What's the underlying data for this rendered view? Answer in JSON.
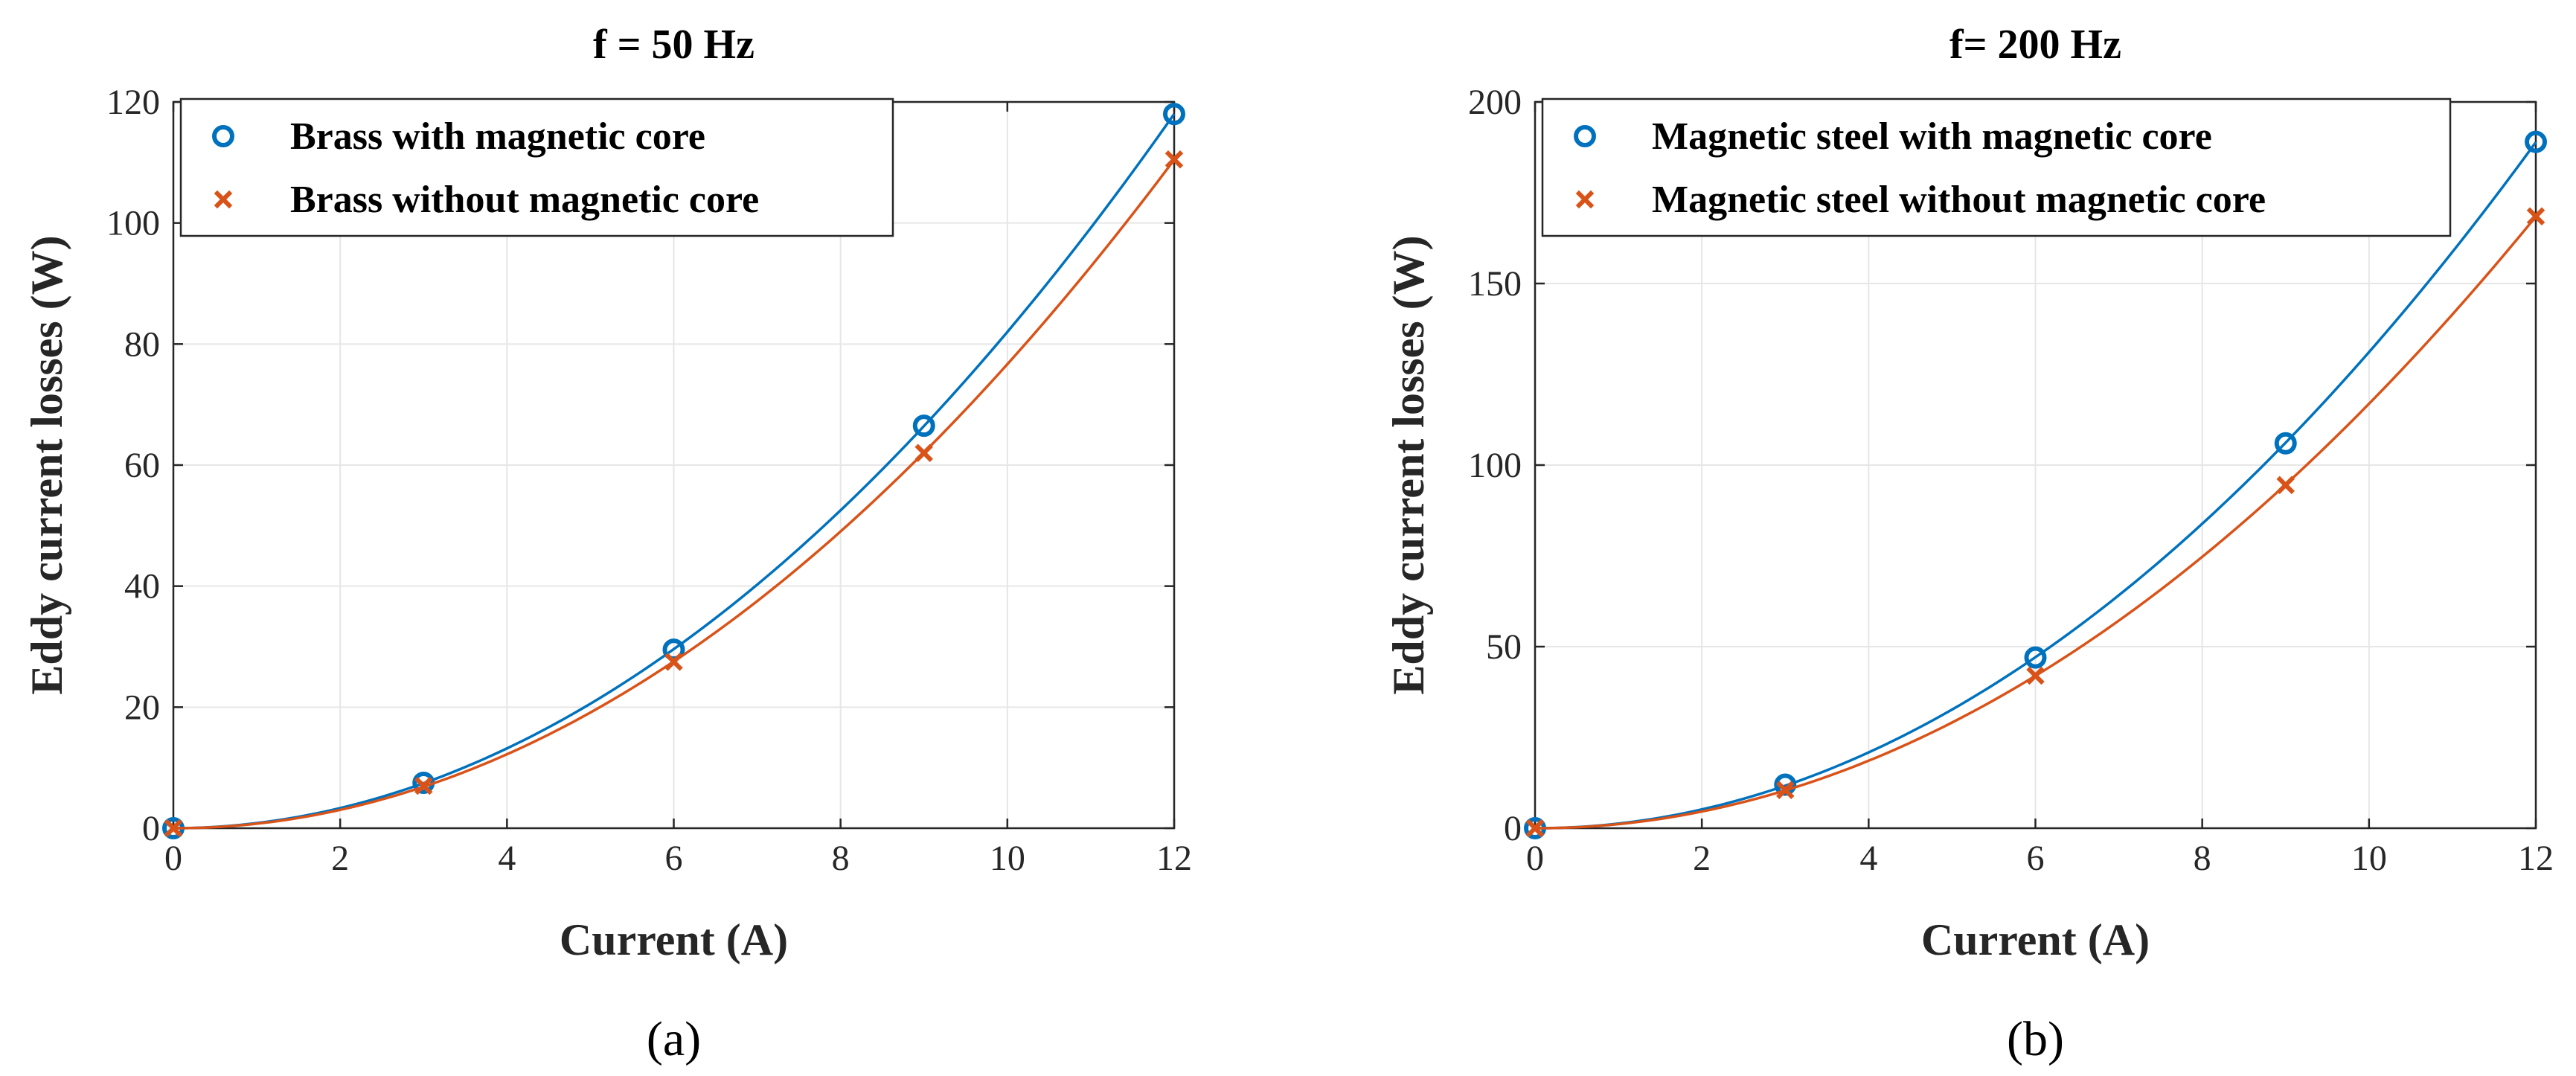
{
  "chart_data": [
    {
      "type": "line",
      "title": "f = 50 Hz",
      "xlabel": "Current (A)",
      "ylabel": "Eddy current losses (W)",
      "caption": "(a)",
      "xlim": [
        0,
        12
      ],
      "ylim": [
        0,
        120
      ],
      "xticks": [
        0,
        2,
        4,
        6,
        8,
        10,
        12
      ],
      "yticks": [
        0,
        20,
        40,
        60,
        80,
        100,
        120
      ],
      "xtick_labels": [
        "0",
        "2",
        "4",
        "6",
        "8",
        "10",
        "12"
      ],
      "ytick_labels": [
        "0",
        "20",
        "40",
        "60",
        "80",
        "100",
        "120"
      ],
      "grid": true,
      "legend_position": "top-left",
      "series": [
        {
          "name": "Brass with magnetic core",
          "marker": "circle",
          "color": "#0072BD",
          "x": [
            0,
            3,
            6,
            9,
            12
          ],
          "y": [
            0,
            7.5,
            29.5,
            66.5,
            118
          ]
        },
        {
          "name": "Brass without magnetic core",
          "marker": "x",
          "color": "#D95319",
          "x": [
            0,
            3,
            6,
            9,
            12
          ],
          "y": [
            0,
            7,
            27.5,
            62,
            110.5
          ]
        }
      ]
    },
    {
      "type": "line",
      "title": "f= 200 Hz",
      "xlabel": "Current (A)",
      "ylabel": "Eddy current losses (W)",
      "caption": "(b)",
      "xlim": [
        0,
        12
      ],
      "ylim": [
        0,
        200
      ],
      "xticks": [
        0,
        2,
        4,
        6,
        8,
        10,
        12
      ],
      "yticks": [
        0,
        50,
        100,
        150,
        200
      ],
      "xtick_labels": [
        "0",
        "2",
        "4",
        "6",
        "8",
        "10",
        "12"
      ],
      "ytick_labels": [
        "0",
        "50",
        "100",
        "150",
        "200"
      ],
      "grid": true,
      "legend_position": "top-left",
      "series": [
        {
          "name": "Magnetic steel with magnetic core",
          "marker": "circle",
          "color": "#0072BD",
          "x": [
            0,
            3,
            6,
            9,
            12
          ],
          "y": [
            0,
            12,
            47,
            106,
            189
          ]
        },
        {
          "name": "Magnetic steel without magnetic core",
          "marker": "x",
          "color": "#D95319",
          "x": [
            0,
            3,
            6,
            9,
            12
          ],
          "y": [
            0,
            10.5,
            42,
            94.5,
            168.5
          ]
        }
      ]
    }
  ]
}
